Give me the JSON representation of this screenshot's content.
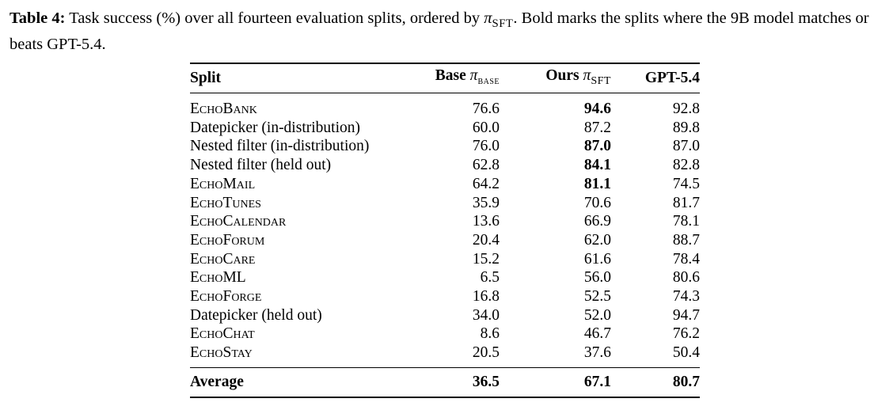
{
  "caption": {
    "label": "Table 4:",
    "text_before": "Task success (%) over all fourteen evaluation splits, ordered by",
    "symbol": "π",
    "sub": "SFT",
    "text_after": ". Bold marks the splits where the 9B model matches or beats GPT-5.4."
  },
  "table": {
    "columns": [
      {
        "text": "Split"
      },
      {
        "text": "Base",
        "symbol": "π",
        "sub": "base"
      },
      {
        "text": "Ours",
        "symbol": "π",
        "sub": "SFT"
      },
      {
        "text": "GPT-5.4"
      }
    ],
    "rows": [
      {
        "split": "EchoBank",
        "small_caps": true,
        "base": "76.6",
        "ours": "94.6",
        "gpt": "92.8",
        "ours_bold": true
      },
      {
        "split": "Datepicker (in-distribution)",
        "small_caps": false,
        "base": "60.0",
        "ours": "87.2",
        "gpt": "89.8",
        "ours_bold": false
      },
      {
        "split": "Nested filter (in-distribution)",
        "small_caps": false,
        "base": "76.0",
        "ours": "87.0",
        "gpt": "87.0",
        "ours_bold": true
      },
      {
        "split": "Nested filter (held out)",
        "small_caps": false,
        "base": "62.8",
        "ours": "84.1",
        "gpt": "82.8",
        "ours_bold": true
      },
      {
        "split": "EchoMail",
        "small_caps": true,
        "base": "64.2",
        "ours": "81.1",
        "gpt": "74.5",
        "ours_bold": true
      },
      {
        "split": "EchoTunes",
        "small_caps": true,
        "base": "35.9",
        "ours": "70.6",
        "gpt": "81.7",
        "ours_bold": false
      },
      {
        "split": "EchoCalendar",
        "small_caps": true,
        "base": "13.6",
        "ours": "66.9",
        "gpt": "78.1",
        "ours_bold": false
      },
      {
        "split": "EchoForum",
        "small_caps": true,
        "base": "20.4",
        "ours": "62.0",
        "gpt": "88.7",
        "ours_bold": false
      },
      {
        "split": "EchoCare",
        "small_caps": true,
        "base": "15.2",
        "ours": "61.6",
        "gpt": "78.4",
        "ours_bold": false
      },
      {
        "split": "EchoML",
        "small_caps": true,
        "base": "6.5",
        "ours": "56.0",
        "gpt": "80.6",
        "ours_bold": false
      },
      {
        "split": "EchoForge",
        "small_caps": true,
        "base": "16.8",
        "ours": "52.5",
        "gpt": "74.3",
        "ours_bold": false
      },
      {
        "split": "Datepicker (held out)",
        "small_caps": false,
        "base": "34.0",
        "ours": "52.0",
        "gpt": "94.7",
        "ours_bold": false
      },
      {
        "split": "EchoChat",
        "small_caps": true,
        "base": "8.6",
        "ours": "46.7",
        "gpt": "76.2",
        "ours_bold": false
      },
      {
        "split": "EchoStay",
        "small_caps": true,
        "base": "20.5",
        "ours": "37.6",
        "gpt": "50.4",
        "ours_bold": false
      }
    ],
    "footer": {
      "split": "Average",
      "base": "36.5",
      "ours": "67.1",
      "gpt": "80.7"
    }
  }
}
